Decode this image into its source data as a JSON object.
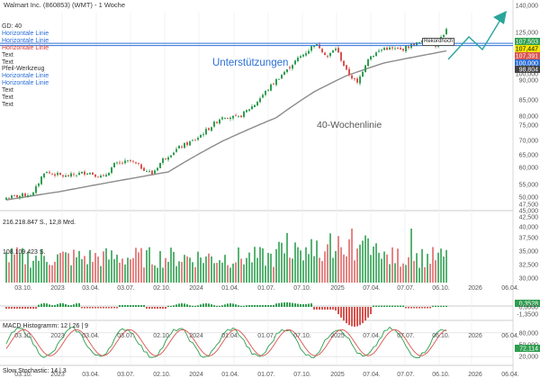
{
  "title": "Walmart Inc. (860853) (WMT) - 1 Woche",
  "legend": [
    {
      "text": "GD: 40",
      "color": "#333333"
    },
    {
      "text": "Horizontale Linie",
      "color": "#2b6fd6"
    },
    {
      "text": "Horizontale Linie",
      "color": "#2b6fd6"
    },
    {
      "text": "Horizontale Linie",
      "color": "#d83a3a"
    },
    {
      "text": "Text",
      "color": "#333333"
    },
    {
      "text": "Text",
      "color": "#333333"
    },
    {
      "text": "Pfeil-Werkzeug",
      "color": "#333333"
    },
    {
      "text": "Horizontale Linie",
      "color": "#2b6fd6"
    },
    {
      "text": "Horizontale Linie",
      "color": "#2b6fd6"
    },
    {
      "text": "Text",
      "color": "#333333"
    },
    {
      "text": "Text",
      "color": "#333333"
    },
    {
      "text": "Text",
      "color": "#333333"
    }
  ],
  "annotations": {
    "support": "Unterstützungen",
    "ma": "40-Wochenlinie",
    "ath": "Rekordhoch"
  },
  "colors": {
    "up": "#2e9e4f",
    "down": "#d9534f",
    "ma": "#8c8c8c",
    "line": "#2b6fd6"
  },
  "price_labels": [
    {
      "value": "107,503",
      "bg": "#2e9e4f",
      "fg": "#ffffff"
    },
    {
      "value": "107,447",
      "bg": "#f2e600",
      "fg": "#111111"
    },
    {
      "value": "107,391",
      "bg": "#d9534f",
      "fg": "#ffffff"
    },
    {
      "value": "100,000",
      "bg": "#2b6fd6",
      "fg": "#ffffff"
    },
    {
      "value": "98,804",
      "bg": "#444444",
      "fg": "#ffffff"
    }
  ],
  "price_axis": [
    "140,000",
    "125,000",
    "110,000",
    "100,000",
    "90,000",
    "85,000",
    "80,000",
    "75,000",
    "70,000",
    "65,000",
    "60,000",
    "55,000",
    "50,000",
    "47,500",
    "45,000",
    "42,500",
    "40,000",
    "37,500",
    "35,000",
    "32,500",
    "30,000"
  ],
  "x_axis": [
    "03.10.",
    "2023",
    "03.04.",
    "03.07.",
    "02.10.",
    "2024",
    "01.04.",
    "01.07.",
    "07.10.",
    "2025",
    "07.04.",
    "07.07.",
    "06.10.",
    "2026",
    "06.04."
  ],
  "volume": {
    "label1": "216.218.847 S., 12,8 Mrd.",
    "label2": "108.109.423 S."
  },
  "macd": {
    "label": "MACD Histogramm: 12 | 26 | 9",
    "value": "0,3528",
    "zero": "0,0000",
    "neg": "-1,3500"
  },
  "stoch": {
    "label": "Slow Stochastic: 14 | 3",
    "value": "72,114",
    "axis": [
      "80,000",
      "50,000",
      "20,000"
    ]
  },
  "chart_data": {
    "type": "candlestick",
    "title": "Walmart Inc. (860853) (WMT) - 1 Woche",
    "x_start": "2022-09-26",
    "x_interval": "1 week",
    "x_ticks": [
      "03.10.",
      "2023",
      "03.04.",
      "03.07.",
      "02.10.",
      "2024",
      "01.04.",
      "01.07.",
      "07.10.",
      "2025",
      "07.04.",
      "07.07.",
      "06.10.",
      "2026",
      "06.04."
    ],
    "close_anchors": [
      [
        0,
        43.5
      ],
      [
        10,
        44.5
      ],
      [
        14,
        50.0
      ],
      [
        22,
        48.8
      ],
      [
        30,
        50.0
      ],
      [
        36,
        48.5
      ],
      [
        40,
        52.0
      ],
      [
        46,
        53.0
      ],
      [
        54,
        49.5
      ],
      [
        58,
        53.5
      ],
      [
        64,
        57.0
      ],
      [
        70,
        59.5
      ],
      [
        76,
        64.0
      ],
      [
        80,
        67.5
      ],
      [
        86,
        67.0
      ],
      [
        92,
        72.0
      ],
      [
        100,
        82.0
      ],
      [
        108,
        92.0
      ],
      [
        112,
        96.5
      ],
      [
        114,
        99.5
      ],
      [
        116,
        98.0
      ],
      [
        119,
        93.0
      ],
      [
        122,
        97.5
      ],
      [
        126,
        86.0
      ],
      [
        130,
        80.5
      ],
      [
        134,
        92.5
      ],
      [
        140,
        97.5
      ],
      [
        146,
        96.5
      ],
      [
        150,
        99.0
      ],
      [
        156,
        101.5
      ],
      [
        159,
        99.0
      ],
      [
        163,
        107.4
      ]
    ],
    "moving_average": {
      "name": "GD: 40",
      "anchors": [
        [
          0,
          43.0
        ],
        [
          20,
          45.0
        ],
        [
          40,
          47.5
        ],
        [
          60,
          50.0
        ],
        [
          80,
          59.0
        ],
        [
          100,
          67.0
        ],
        [
          114,
          77.0
        ],
        [
          126,
          84.0
        ],
        [
          140,
          90.0
        ],
        [
          163,
          96.0
        ]
      ]
    },
    "horizontal_lines": [
      100.0,
      98.804
    ],
    "last_values": {
      "high": 107.503,
      "last": 107.447,
      "low": 107.391
    },
    "volume_label": "216.218.847 S., 12,8 Mrd.",
    "indicators": [
      "MACD Histogramm: 12 | 26 | 9",
      "Slow Stochastic: 14 | 3"
    ]
  }
}
